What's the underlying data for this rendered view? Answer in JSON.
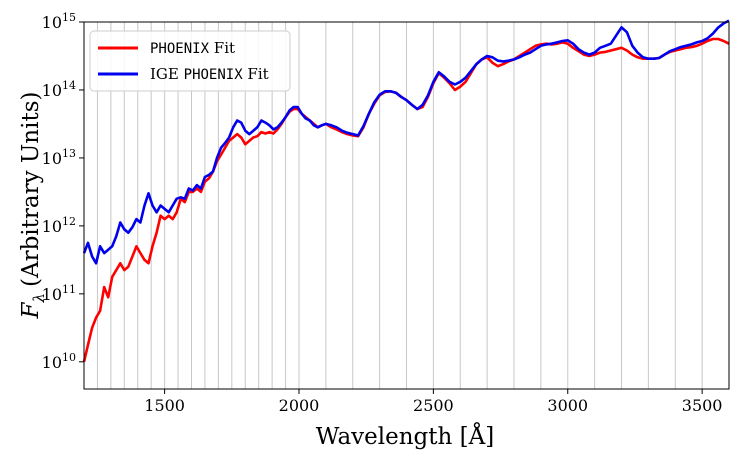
{
  "chart_data": {
    "type": "line",
    "title": "",
    "xlabel": "Wavelength [Å]",
    "ylabel_symbol": "F",
    "ylabel_subscript": "λ",
    "ylabel_rest": "(Arbitrary Units)",
    "xlim": [
      1200,
      3600
    ],
    "ylim_log10": [
      9.6,
      15.0
    ],
    "y_scale": "log",
    "x_ticks": [
      1500,
      2000,
      2500,
      3000,
      3500
    ],
    "x_tick_labels": [
      "1500",
      "2000",
      "2500",
      "3000",
      "3500"
    ],
    "y_ticks": [
      {
        "base": "10",
        "exp": "10"
      },
      {
        "base": "10",
        "exp": "11"
      },
      {
        "base": "10",
        "exp": "12"
      },
      {
        "base": "10",
        "exp": "13"
      },
      {
        "base": "10",
        "exp": "14"
      },
      {
        "base": "10",
        "exp": "15"
      }
    ],
    "vertical_gridlines": [
      1200,
      1250,
      1300,
      1350,
      1400,
      1450,
      1500,
      1550,
      1600,
      1650,
      1700,
      1750,
      1800,
      1850,
      1900,
      1950,
      2000,
      2100,
      2200,
      2300,
      2400,
      2500,
      2600,
      2700,
      2800,
      2900,
      3000,
      3100,
      3200,
      3300,
      3400,
      3500,
      3600
    ],
    "legend": {
      "placement": "top-left",
      "entries": [
        {
          "series": 0,
          "prefix": "",
          "mono": "PHOENIX",
          "suffix": " Fit"
        },
        {
          "series": 1,
          "prefix": "IGE ",
          "mono": "PHOENIX",
          "suffix": " Fit"
        }
      ]
    },
    "series": [
      {
        "name": "PHOENIX Fit",
        "color": "#ff0000",
        "points": [
          [
            1200,
            10.0
          ],
          [
            1215,
            10.25
          ],
          [
            1230,
            10.5
          ],
          [
            1245,
            10.65
          ],
          [
            1260,
            10.75
          ],
          [
            1275,
            11.1
          ],
          [
            1290,
            10.95
          ],
          [
            1305,
            11.25
          ],
          [
            1320,
            11.35
          ],
          [
            1335,
            11.45
          ],
          [
            1350,
            11.35
          ],
          [
            1365,
            11.4
          ],
          [
            1380,
            11.55
          ],
          [
            1395,
            11.7
          ],
          [
            1410,
            11.6
          ],
          [
            1425,
            11.5
          ],
          [
            1440,
            11.45
          ],
          [
            1455,
            11.7
          ],
          [
            1470,
            11.9
          ],
          [
            1485,
            12.15
          ],
          [
            1500,
            12.1
          ],
          [
            1515,
            12.15
          ],
          [
            1530,
            12.1
          ],
          [
            1545,
            12.2
          ],
          [
            1560,
            12.4
          ],
          [
            1575,
            12.35
          ],
          [
            1590,
            12.5
          ],
          [
            1605,
            12.5
          ],
          [
            1620,
            12.55
          ],
          [
            1635,
            12.5
          ],
          [
            1650,
            12.65
          ],
          [
            1665,
            12.7
          ],
          [
            1680,
            12.8
          ],
          [
            1695,
            12.95
          ],
          [
            1710,
            13.05
          ],
          [
            1725,
            13.15
          ],
          [
            1740,
            13.25
          ],
          [
            1755,
            13.3
          ],
          [
            1770,
            13.35
          ],
          [
            1785,
            13.3
          ],
          [
            1800,
            13.2
          ],
          [
            1815,
            13.25
          ],
          [
            1830,
            13.3
          ],
          [
            1845,
            13.32
          ],
          [
            1860,
            13.38
          ],
          [
            1875,
            13.36
          ],
          [
            1890,
            13.38
          ],
          [
            1905,
            13.36
          ],
          [
            1920,
            13.42
          ],
          [
            1935,
            13.5
          ],
          [
            1950,
            13.6
          ],
          [
            1965,
            13.68
          ],
          [
            1980,
            13.72
          ],
          [
            1995,
            13.72
          ],
          [
            2010,
            13.65
          ],
          [
            2025,
            13.6
          ],
          [
            2040,
            13.55
          ],
          [
            2055,
            13.5
          ],
          [
            2070,
            13.45
          ],
          [
            2085,
            13.48
          ],
          [
            2100,
            13.5
          ],
          [
            2120,
            13.45
          ],
          [
            2140,
            13.42
          ],
          [
            2160,
            13.38
          ],
          [
            2180,
            13.35
          ],
          [
            2200,
            13.33
          ],
          [
            2220,
            13.32
          ],
          [
            2240,
            13.45
          ],
          [
            2260,
            13.65
          ],
          [
            2280,
            13.8
          ],
          [
            2300,
            13.92
          ],
          [
            2320,
            13.97
          ],
          [
            2340,
            13.98
          ],
          [
            2360,
            13.96
          ],
          [
            2380,
            13.9
          ],
          [
            2400,
            13.85
          ],
          [
            2420,
            13.78
          ],
          [
            2440,
            13.72
          ],
          [
            2460,
            13.75
          ],
          [
            2480,
            13.9
          ],
          [
            2500,
            14.1
          ],
          [
            2520,
            14.25
          ],
          [
            2540,
            14.18
          ],
          [
            2560,
            14.1
          ],
          [
            2580,
            14.0
          ],
          [
            2600,
            14.05
          ],
          [
            2620,
            14.12
          ],
          [
            2640,
            14.25
          ],
          [
            2660,
            14.38
          ],
          [
            2680,
            14.45
          ],
          [
            2700,
            14.48
          ],
          [
            2720,
            14.4
          ],
          [
            2740,
            14.35
          ],
          [
            2760,
            14.38
          ],
          [
            2780,
            14.42
          ],
          [
            2800,
            14.45
          ],
          [
            2820,
            14.5
          ],
          [
            2840,
            14.55
          ],
          [
            2860,
            14.6
          ],
          [
            2880,
            14.65
          ],
          [
            2900,
            14.67
          ],
          [
            2920,
            14.68
          ],
          [
            2940,
            14.67
          ],
          [
            2960,
            14.68
          ],
          [
            2980,
            14.7
          ],
          [
            3000,
            14.68
          ],
          [
            3020,
            14.62
          ],
          [
            3040,
            14.57
          ],
          [
            3060,
            14.52
          ],
          [
            3080,
            14.5
          ],
          [
            3100,
            14.52
          ],
          [
            3120,
            14.55
          ],
          [
            3140,
            14.56
          ],
          [
            3160,
            14.58
          ],
          [
            3180,
            14.6
          ],
          [
            3200,
            14.62
          ],
          [
            3220,
            14.58
          ],
          [
            3240,
            14.52
          ],
          [
            3260,
            14.48
          ],
          [
            3280,
            14.46
          ],
          [
            3300,
            14.46
          ],
          [
            3320,
            14.46
          ],
          [
            3340,
            14.47
          ],
          [
            3360,
            14.52
          ],
          [
            3380,
            14.56
          ],
          [
            3400,
            14.58
          ],
          [
            3420,
            14.6
          ],
          [
            3440,
            14.62
          ],
          [
            3460,
            14.63
          ],
          [
            3480,
            14.65
          ],
          [
            3500,
            14.68
          ],
          [
            3520,
            14.72
          ],
          [
            3540,
            14.75
          ],
          [
            3560,
            14.75
          ],
          [
            3580,
            14.72
          ],
          [
            3600,
            14.68
          ]
        ]
      },
      {
        "name": "IGE PHOENIX Fit",
        "color": "#0000ee",
        "points": [
          [
            1200,
            11.6
          ],
          [
            1215,
            11.75
          ],
          [
            1230,
            11.55
          ],
          [
            1245,
            11.45
          ],
          [
            1260,
            11.7
          ],
          [
            1275,
            11.6
          ],
          [
            1290,
            11.65
          ],
          [
            1305,
            11.7
          ],
          [
            1320,
            11.85
          ],
          [
            1335,
            12.05
          ],
          [
            1350,
            11.95
          ],
          [
            1365,
            11.9
          ],
          [
            1380,
            11.98
          ],
          [
            1395,
            12.1
          ],
          [
            1410,
            12.05
          ],
          [
            1425,
            12.3
          ],
          [
            1440,
            12.48
          ],
          [
            1455,
            12.3
          ],
          [
            1470,
            12.2
          ],
          [
            1485,
            12.3
          ],
          [
            1500,
            12.25
          ],
          [
            1515,
            12.2
          ],
          [
            1530,
            12.3
          ],
          [
            1545,
            12.4
          ],
          [
            1560,
            12.42
          ],
          [
            1575,
            12.4
          ],
          [
            1590,
            12.55
          ],
          [
            1605,
            12.52
          ],
          [
            1620,
            12.6
          ],
          [
            1635,
            12.55
          ],
          [
            1650,
            12.72
          ],
          [
            1665,
            12.75
          ],
          [
            1680,
            12.8
          ],
          [
            1695,
            13.0
          ],
          [
            1710,
            13.15
          ],
          [
            1725,
            13.22
          ],
          [
            1740,
            13.3
          ],
          [
            1755,
            13.45
          ],
          [
            1770,
            13.55
          ],
          [
            1785,
            13.52
          ],
          [
            1800,
            13.4
          ],
          [
            1815,
            13.35
          ],
          [
            1830,
            13.4
          ],
          [
            1845,
            13.45
          ],
          [
            1860,
            13.55
          ],
          [
            1875,
            13.52
          ],
          [
            1890,
            13.48
          ],
          [
            1905,
            13.42
          ],
          [
            1920,
            13.45
          ],
          [
            1935,
            13.52
          ],
          [
            1950,
            13.6
          ],
          [
            1965,
            13.7
          ],
          [
            1980,
            13.75
          ],
          [
            1995,
            13.75
          ],
          [
            2010,
            13.65
          ],
          [
            2025,
            13.58
          ],
          [
            2040,
            13.55
          ],
          [
            2055,
            13.48
          ],
          [
            2070,
            13.45
          ],
          [
            2085,
            13.48
          ],
          [
            2100,
            13.5
          ],
          [
            2120,
            13.48
          ],
          [
            2140,
            13.45
          ],
          [
            2160,
            13.4
          ],
          [
            2180,
            13.37
          ],
          [
            2200,
            13.35
          ],
          [
            2220,
            13.33
          ],
          [
            2240,
            13.47
          ],
          [
            2260,
            13.65
          ],
          [
            2280,
            13.82
          ],
          [
            2300,
            13.93
          ],
          [
            2320,
            13.98
          ],
          [
            2340,
            13.98
          ],
          [
            2360,
            13.96
          ],
          [
            2380,
            13.9
          ],
          [
            2400,
            13.85
          ],
          [
            2420,
            13.78
          ],
          [
            2440,
            13.72
          ],
          [
            2460,
            13.78
          ],
          [
            2480,
            13.92
          ],
          [
            2500,
            14.12
          ],
          [
            2520,
            14.26
          ],
          [
            2540,
            14.2
          ],
          [
            2560,
            14.12
          ],
          [
            2580,
            14.08
          ],
          [
            2600,
            14.12
          ],
          [
            2620,
            14.18
          ],
          [
            2640,
            14.28
          ],
          [
            2660,
            14.38
          ],
          [
            2680,
            14.45
          ],
          [
            2700,
            14.5
          ],
          [
            2720,
            14.48
          ],
          [
            2740,
            14.43
          ],
          [
            2760,
            14.42
          ],
          [
            2780,
            14.43
          ],
          [
            2800,
            14.45
          ],
          [
            2820,
            14.48
          ],
          [
            2840,
            14.52
          ],
          [
            2860,
            14.55
          ],
          [
            2880,
            14.6
          ],
          [
            2900,
            14.65
          ],
          [
            2920,
            14.67
          ],
          [
            2940,
            14.68
          ],
          [
            2960,
            14.7
          ],
          [
            2980,
            14.72
          ],
          [
            3000,
            14.73
          ],
          [
            3020,
            14.68
          ],
          [
            3040,
            14.6
          ],
          [
            3060,
            14.55
          ],
          [
            3080,
            14.52
          ],
          [
            3100,
            14.55
          ],
          [
            3120,
            14.62
          ],
          [
            3140,
            14.65
          ],
          [
            3160,
            14.68
          ],
          [
            3180,
            14.8
          ],
          [
            3200,
            14.92
          ],
          [
            3220,
            14.85
          ],
          [
            3240,
            14.65
          ],
          [
            3260,
            14.55
          ],
          [
            3280,
            14.48
          ],
          [
            3300,
            14.46
          ],
          [
            3320,
            14.46
          ],
          [
            3340,
            14.47
          ],
          [
            3360,
            14.52
          ],
          [
            3380,
            14.57
          ],
          [
            3400,
            14.6
          ],
          [
            3420,
            14.63
          ],
          [
            3440,
            14.65
          ],
          [
            3460,
            14.67
          ],
          [
            3480,
            14.7
          ],
          [
            3500,
            14.72
          ],
          [
            3520,
            14.76
          ],
          [
            3540,
            14.83
          ],
          [
            3560,
            14.92
          ],
          [
            3580,
            14.98
          ],
          [
            3600,
            15.02
          ]
        ]
      }
    ]
  }
}
